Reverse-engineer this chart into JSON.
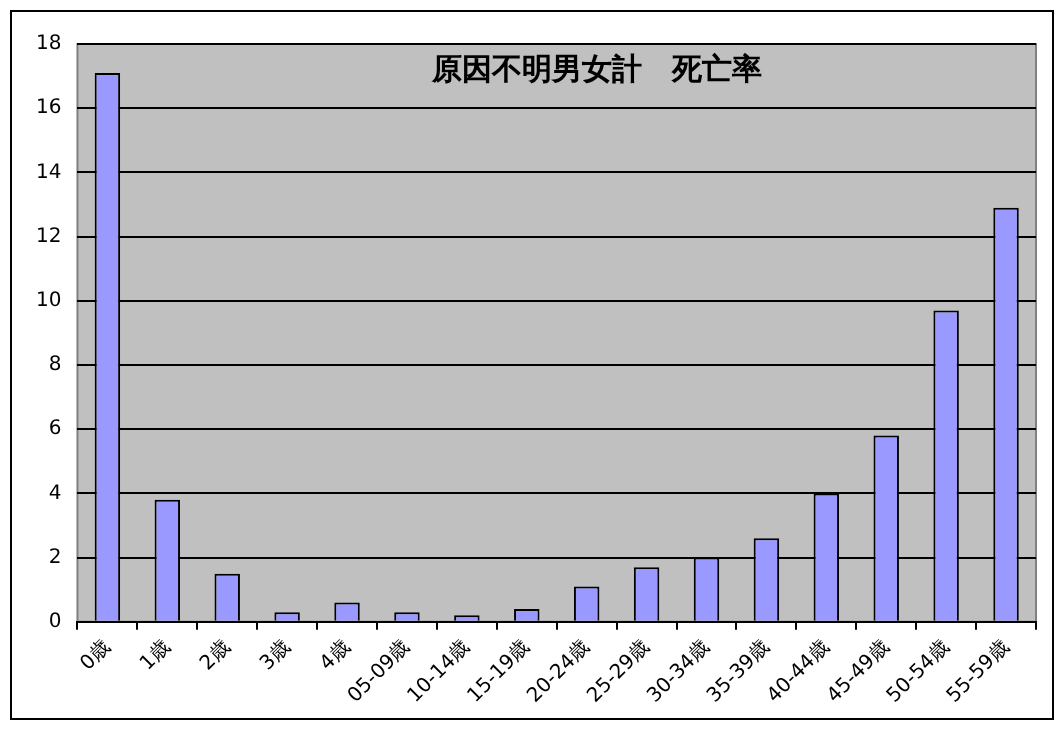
{
  "chart_data": {
    "type": "bar",
    "title": "原因不明男女計　死亡率",
    "categories": [
      "0歳",
      "1歳",
      "2歳",
      "3歳",
      "4歳",
      "05-09歳",
      "10-14歳",
      "15-19歳",
      "20-24歳",
      "25-29歳",
      "30-34歳",
      "35-39歳",
      "40-44歳",
      "45-49歳",
      "50-54歳",
      "55-59歳"
    ],
    "values": [
      17.1,
      3.8,
      1.5,
      0.3,
      0.6,
      0.3,
      0.2,
      0.4,
      1.1,
      1.7,
      2.0,
      2.6,
      4.0,
      5.8,
      9.7,
      12.9
    ],
    "color": "#9999ff",
    "ylim": [
      0,
      18
    ],
    "yticks": [
      0,
      2,
      4,
      6,
      8,
      10,
      12,
      14,
      16,
      18
    ],
    "grid": "y",
    "legend": false
  }
}
